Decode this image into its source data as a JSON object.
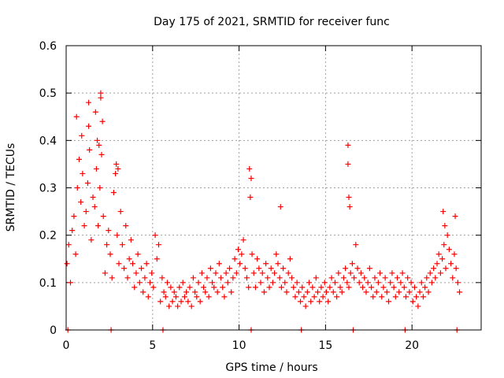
{
  "chart_data": {
    "type": "scatter",
    "title": "Day 175 of 2021, SRMTID for receiver func",
    "xlabel": "GPS time / hours",
    "ylabel": "SRMTID / TECUs",
    "xlim": [
      0,
      24
    ],
    "ylim": [
      0,
      0.6
    ],
    "xticks": [
      0,
      5,
      10,
      15,
      20
    ],
    "xtick_labels": [
      "0",
      "5",
      "10",
      "15",
      "20"
    ],
    "yticks": [
      0,
      0.1,
      0.2,
      0.3,
      0.4,
      0.5,
      0.6
    ],
    "ytick_labels": [
      "0",
      "0.1",
      "0.2",
      "0.3",
      "0.4",
      "0.5",
      "0.6"
    ],
    "grid": true,
    "marker": "plus",
    "color": "#ff0000",
    "series": [
      {
        "name": "SRMTID",
        "x": [
          0.05,
          0.15,
          0.25,
          0.35,
          0.45,
          0.55,
          0.65,
          0.75,
          0.85,
          0.95,
          1.05,
          1.15,
          1.25,
          1.35,
          1.45,
          1.55,
          1.65,
          1.75,
          1.85,
          1.95,
          2.05,
          2.15,
          2.25,
          2.35,
          2.45,
          2.55,
          2.65,
          2.75,
          2.85,
          2.95,
          3.05,
          3.15,
          3.25,
          3.35,
          3.45,
          3.55,
          3.65,
          3.75,
          3.85,
          3.95,
          4.05,
          4.15,
          4.25,
          4.35,
          4.45,
          4.55,
          4.65,
          4.75,
          4.85,
          4.95,
          5.05,
          5.15,
          5.25,
          5.35,
          5.45,
          5.55,
          5.65,
          5.75,
          5.85,
          5.95,
          6.05,
          6.15,
          6.25,
          6.35,
          6.45,
          6.55,
          6.65,
          6.75,
          6.85,
          6.95,
          7.05,
          7.15,
          7.25,
          7.35,
          7.45,
          7.55,
          7.65,
          7.75,
          7.85,
          7.95,
          8.05,
          8.15,
          8.25,
          8.35,
          8.45,
          8.55,
          8.65,
          8.75,
          8.85,
          8.95,
          9.05,
          9.15,
          9.25,
          9.35,
          9.45,
          9.55,
          9.65,
          9.75,
          9.85,
          9.95,
          10.05,
          10.15,
          10.25,
          10.35,
          10.45,
          10.55,
          10.65,
          10.75,
          10.85,
          10.95,
          11.05,
          11.15,
          11.25,
          11.35,
          11.45,
          11.55,
          11.65,
          11.75,
          11.85,
          11.95,
          12.05,
          12.15,
          12.25,
          12.35,
          12.45,
          12.55,
          12.65,
          12.75,
          12.85,
          12.95,
          13.05,
          13.15,
          13.25,
          13.35,
          13.45,
          13.55,
          13.65,
          13.75,
          13.85,
          13.95,
          14.05,
          14.15,
          14.25,
          14.35,
          14.45,
          14.55,
          14.65,
          14.75,
          14.85,
          14.95,
          15.05,
          15.15,
          15.25,
          15.35,
          15.45,
          15.55,
          15.65,
          15.75,
          15.85,
          15.95,
          16.05,
          16.15,
          16.25,
          16.35,
          16.45,
          16.55,
          16.65,
          16.75,
          16.85,
          16.95,
          17.05,
          17.15,
          17.25,
          17.35,
          17.45,
          17.55,
          17.65,
          17.75,
          17.85,
          17.95,
          18.05,
          18.15,
          18.25,
          18.35,
          18.45,
          18.55,
          18.65,
          18.75,
          18.85,
          18.95,
          19.05,
          19.15,
          19.25,
          19.35,
          19.45,
          19.55,
          19.65,
          19.75,
          19.85,
          19.95,
          20.05,
          20.15,
          20.25,
          20.35,
          20.45,
          20.55,
          20.65,
          20.75,
          20.85,
          20.95,
          21.05,
          21.15,
          21.25,
          21.35,
          21.45,
          21.55,
          21.65,
          21.75,
          21.85,
          21.95,
          22.05,
          22.15,
          22.25,
          22.35,
          22.45,
          22.55,
          22.65,
          22.75,
          0.6,
          0.9,
          1.3,
          1.3,
          1.7,
          1.8,
          1.9,
          2.0,
          2.0,
          2.1,
          2.9,
          3.0,
          10.6,
          10.7,
          12.4,
          16.3,
          16.3,
          16.35,
          16.4,
          21.8,
          21.9,
          22.5,
          0.1,
          2.6,
          5.6,
          10.7,
          13.6,
          16.6,
          19.6,
          22.6
        ],
        "y": [
          0.14,
          0.18,
          0.1,
          0.21,
          0.24,
          0.16,
          0.3,
          0.36,
          0.27,
          0.33,
          0.22,
          0.25,
          0.31,
          0.38,
          0.19,
          0.28,
          0.26,
          0.34,
          0.22,
          0.3,
          0.37,
          0.24,
          0.12,
          0.18,
          0.21,
          0.16,
          0.11,
          0.29,
          0.33,
          0.2,
          0.14,
          0.25,
          0.18,
          0.13,
          0.22,
          0.11,
          0.15,
          0.19,
          0.14,
          0.09,
          0.12,
          0.16,
          0.1,
          0.13,
          0.08,
          0.11,
          0.14,
          0.07,
          0.1,
          0.12,
          0.09,
          0.2,
          0.15,
          0.18,
          0.06,
          0.11,
          0.08,
          0.07,
          0.1,
          0.05,
          0.09,
          0.06,
          0.08,
          0.07,
          0.05,
          0.09,
          0.06,
          0.1,
          0.07,
          0.08,
          0.06,
          0.09,
          0.05,
          0.11,
          0.08,
          0.07,
          0.1,
          0.06,
          0.12,
          0.09,
          0.08,
          0.11,
          0.07,
          0.13,
          0.1,
          0.09,
          0.12,
          0.08,
          0.14,
          0.11,
          0.09,
          0.07,
          0.12,
          0.1,
          0.13,
          0.08,
          0.11,
          0.15,
          0.12,
          0.17,
          0.14,
          0.16,
          0.19,
          0.13,
          0.11,
          0.09,
          0.28,
          0.16,
          0.12,
          0.09,
          0.15,
          0.13,
          0.1,
          0.12,
          0.08,
          0.14,
          0.11,
          0.09,
          0.13,
          0.1,
          0.12,
          0.16,
          0.14,
          0.11,
          0.09,
          0.13,
          0.1,
          0.08,
          0.12,
          0.15,
          0.11,
          0.09,
          0.07,
          0.1,
          0.08,
          0.06,
          0.09,
          0.07,
          0.05,
          0.08,
          0.1,
          0.06,
          0.09,
          0.07,
          0.11,
          0.08,
          0.06,
          0.09,
          0.07,
          0.1,
          0.08,
          0.06,
          0.09,
          0.11,
          0.08,
          0.1,
          0.07,
          0.12,
          0.09,
          0.08,
          0.11,
          0.13,
          0.1,
          0.09,
          0.12,
          0.14,
          0.11,
          0.18,
          0.13,
          0.1,
          0.12,
          0.09,
          0.11,
          0.08,
          0.1,
          0.13,
          0.09,
          0.07,
          0.11,
          0.08,
          0.1,
          0.12,
          0.07,
          0.09,
          0.11,
          0.08,
          0.06,
          0.1,
          0.12,
          0.09,
          0.07,
          0.11,
          0.08,
          0.1,
          0.12,
          0.09,
          0.07,
          0.11,
          0.08,
          0.1,
          0.06,
          0.09,
          0.07,
          0.05,
          0.08,
          0.1,
          0.07,
          0.09,
          0.11,
          0.08,
          0.12,
          0.1,
          0.13,
          0.11,
          0.14,
          0.16,
          0.12,
          0.15,
          0.18,
          0.13,
          0.2,
          0.17,
          0.14,
          0.11,
          0.16,
          0.13,
          0.1,
          0.08,
          0.45,
          0.41,
          0.48,
          0.43,
          0.46,
          0.4,
          0.39,
          0.5,
          0.49,
          0.44,
          0.35,
          0.34,
          0.34,
          0.32,
          0.26,
          0.39,
          0.35,
          0.28,
          0.26,
          0.25,
          0.22,
          0.24,
          0.0,
          0.0,
          0.0,
          0.0,
          0.0,
          0.0,
          0.0,
          0.0
        ]
      }
    ]
  }
}
